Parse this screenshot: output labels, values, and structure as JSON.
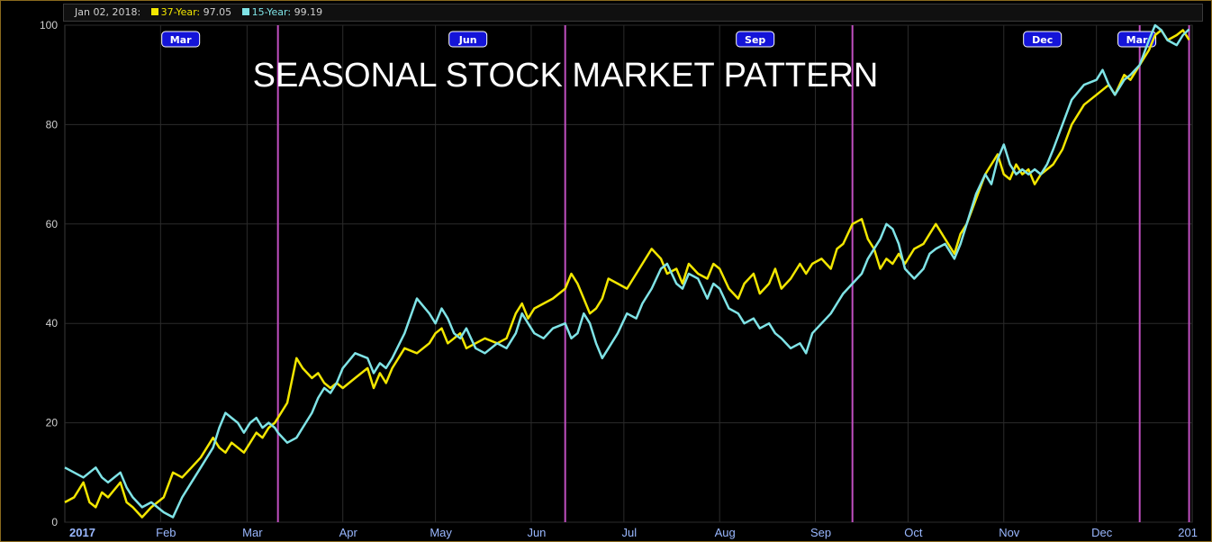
{
  "header": {
    "date": "Jan 02, 2018:",
    "s1_label": "37-Year:",
    "s1_value": "97.05",
    "s2_label": "15-Year:",
    "s2_value": "99.19"
  },
  "colors": {
    "background": "#000000",
    "grid": "#2b2b2b",
    "series_37": "#f2e600",
    "series_15": "#7fe3e6",
    "quarter_line": "#c04fc0",
    "badge_fill": "#1414d8",
    "x_label": "#9ab8ff",
    "y_label": "#d0d0d0",
    "frame": "#8a6a1e"
  },
  "chart_data": {
    "type": "line",
    "title": "SEASONAL STOCK MARKET PATTERN",
    "ylim": [
      0,
      100
    ],
    "y_ticks": [
      0,
      20,
      40,
      60,
      80,
      100
    ],
    "xlim": [
      0,
      365
    ],
    "x_ticks": [
      {
        "label": "2017",
        "day": 0
      },
      {
        "label": "Feb",
        "day": 31
      },
      {
        "label": "Mar",
        "day": 59
      },
      {
        "label": "Apr",
        "day": 90
      },
      {
        "label": "May",
        "day": 120
      },
      {
        "label": "Jun",
        "day": 151
      },
      {
        "label": "Jul",
        "day": 181
      },
      {
        "label": "Aug",
        "day": 212
      },
      {
        "label": "Sep",
        "day": 243
      },
      {
        "label": "Oct",
        "day": 273
      },
      {
        "label": "Nov",
        "day": 304
      },
      {
        "label": "Dec",
        "day": 334
      },
      {
        "label": "201",
        "day": 365
      }
    ],
    "quarter_markers": [
      {
        "label": "Mar",
        "day": 69
      },
      {
        "label": "Jun",
        "day": 162
      },
      {
        "label": "Sep",
        "day": 255
      },
      {
        "label": "Dec",
        "day": 348
      },
      {
        "label": "Mar",
        "day": 364
      }
    ],
    "grid": true,
    "legend": "top-left",
    "series": [
      {
        "name": "37-Year",
        "x": [
          0,
          3,
          6,
          8,
          10,
          12,
          14,
          18,
          20,
          22,
          25,
          28,
          32,
          35,
          38,
          41,
          44,
          48,
          50,
          52,
          54,
          56,
          58,
          60,
          62,
          64,
          66,
          68,
          69,
          72,
          75,
          77,
          80,
          82,
          84,
          86,
          88,
          90,
          94,
          98,
          100,
          102,
          104,
          106,
          110,
          114,
          118,
          120,
          122,
          124,
          126,
          128,
          130,
          133,
          136,
          140,
          143,
          146,
          148,
          150,
          152,
          155,
          158,
          162,
          164,
          166,
          168,
          170,
          172,
          174,
          176,
          179,
          182,
          185,
          187,
          190,
          193,
          195,
          198,
          200,
          202,
          205,
          208,
          210,
          212,
          215,
          218,
          220,
          223,
          225,
          228,
          230,
          232,
          235,
          238,
          240,
          242,
          245,
          248,
          250,
          252,
          255,
          258,
          260,
          262,
          264,
          266,
          268,
          270,
          272,
          275,
          278,
          280,
          282,
          285,
          288,
          290,
          292,
          295,
          298,
          300,
          302,
          304,
          306,
          308,
          310,
          312,
          314,
          316,
          318,
          320,
          323,
          326,
          330,
          334,
          336,
          338,
          340,
          343,
          345,
          348,
          351,
          353,
          355,
          357,
          360,
          362,
          364
        ],
        "values": [
          4,
          5,
          8,
          4,
          3,
          6,
          5,
          8,
          4,
          3,
          1,
          3,
          5,
          10,
          9,
          11,
          13,
          17,
          15,
          14,
          16,
          15,
          14,
          16,
          18,
          17,
          19,
          20,
          21,
          24,
          33,
          31,
          29,
          30,
          28,
          27,
          28,
          27,
          29,
          31,
          27,
          30,
          28,
          31,
          35,
          34,
          36,
          38,
          39,
          36,
          37,
          38,
          35,
          36,
          37,
          36,
          37,
          42,
          44,
          41,
          43,
          44,
          45,
          47,
          50,
          48,
          45,
          42,
          43,
          45,
          49,
          48,
          47,
          50,
          52,
          55,
          53,
          50,
          51,
          48,
          52,
          50,
          49,
          52,
          51,
          47,
          45,
          48,
          50,
          46,
          48,
          51,
          47,
          49,
          52,
          50,
          52,
          53,
          51,
          55,
          56,
          60,
          61,
          57,
          55,
          51,
          53,
          52,
          54,
          52,
          55,
          56,
          58,
          60,
          57,
          54,
          58,
          60,
          65,
          70,
          72,
          74,
          70,
          69,
          72,
          70,
          71,
          68,
          70,
          71,
          72,
          75,
          80,
          84,
          86,
          87,
          88,
          86,
          90,
          89,
          92,
          95,
          98,
          99,
          97,
          98,
          99,
          97.05
        ]
      },
      {
        "name": "15-Year",
        "x": [
          0,
          3,
          6,
          8,
          10,
          12,
          14,
          18,
          20,
          22,
          25,
          28,
          32,
          35,
          38,
          41,
          44,
          48,
          50,
          52,
          54,
          56,
          58,
          60,
          62,
          64,
          66,
          68,
          69,
          72,
          75,
          77,
          80,
          82,
          84,
          86,
          88,
          90,
          94,
          98,
          100,
          102,
          104,
          106,
          110,
          114,
          118,
          120,
          122,
          124,
          126,
          128,
          130,
          133,
          136,
          140,
          143,
          146,
          148,
          150,
          152,
          155,
          158,
          162,
          164,
          166,
          168,
          170,
          172,
          174,
          176,
          179,
          182,
          185,
          187,
          190,
          193,
          195,
          198,
          200,
          202,
          205,
          208,
          210,
          212,
          215,
          218,
          220,
          223,
          225,
          228,
          230,
          232,
          235,
          238,
          240,
          242,
          245,
          248,
          250,
          252,
          255,
          258,
          260,
          262,
          264,
          266,
          268,
          270,
          272,
          275,
          278,
          280,
          282,
          285,
          288,
          290,
          292,
          295,
          298,
          300,
          302,
          304,
          306,
          308,
          310,
          312,
          314,
          316,
          318,
          320,
          323,
          326,
          330,
          334,
          336,
          338,
          340,
          343,
          345,
          348,
          351,
          353,
          355,
          357,
          360,
          362,
          364
        ],
        "values": [
          11,
          10,
          9,
          10,
          11,
          9,
          8,
          10,
          7,
          5,
          3,
          4,
          2,
          1,
          5,
          8,
          11,
          15,
          19,
          22,
          21,
          20,
          18,
          20,
          21,
          19,
          20,
          19,
          18,
          16,
          17,
          19,
          22,
          25,
          27,
          26,
          28,
          31,
          34,
          33,
          30,
          32,
          31,
          33,
          38,
          45,
          42,
          40,
          43,
          41,
          38,
          37,
          39,
          35,
          34,
          36,
          35,
          38,
          42,
          40,
          38,
          37,
          39,
          40,
          37,
          38,
          42,
          40,
          36,
          33,
          35,
          38,
          42,
          41,
          44,
          47,
          51,
          52,
          48,
          47,
          50,
          49,
          45,
          48,
          47,
          43,
          42,
          40,
          41,
          39,
          40,
          38,
          37,
          35,
          36,
          34,
          38,
          40,
          42,
          44,
          46,
          48,
          50,
          53,
          55,
          57,
          60,
          59,
          56,
          51,
          49,
          51,
          54,
          55,
          56,
          53,
          56,
          60,
          66,
          70,
          68,
          73,
          76,
          72,
          70,
          71,
          70,
          71,
          70,
          72,
          75,
          80,
          85,
          88,
          89,
          91,
          88,
          86,
          89,
          90,
          92,
          97,
          100,
          99,
          97,
          96,
          98,
          99.19
        ]
      }
    ]
  }
}
